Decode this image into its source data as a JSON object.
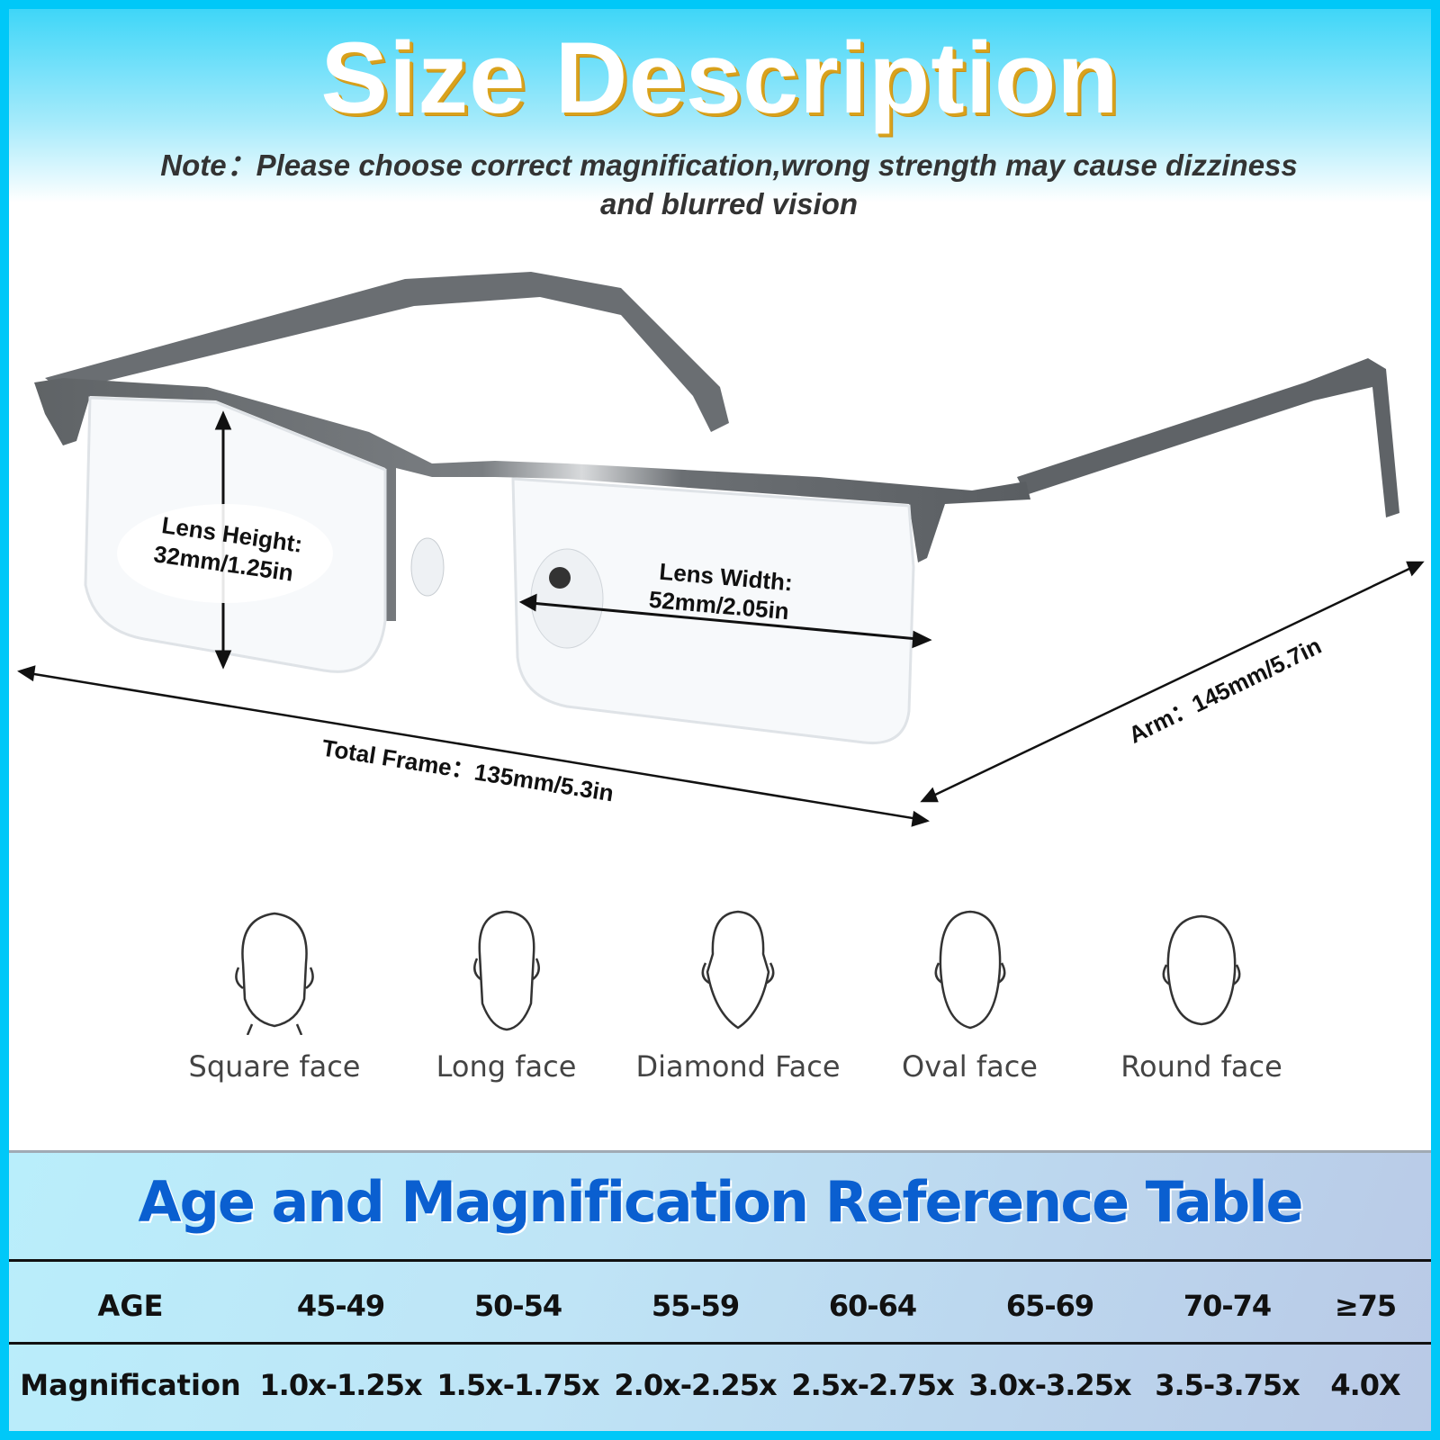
{
  "header": {
    "title": "Size Description",
    "note_line1": "Note：Please choose correct magnification,wrong strength may cause dizziness",
    "note_line2": "and blurred vision"
  },
  "dimensions": {
    "lens_height_label": "Lens Height:",
    "lens_height_value": "32mm/1.25in",
    "lens_width_label": "Lens Width:",
    "lens_width_value": "52mm/2.05in",
    "total_frame": "Total Frame：135mm/5.3in",
    "arm": "Arm：145mm/5.7in"
  },
  "faces": [
    {
      "label": "Square face"
    },
    {
      "label": "Long face"
    },
    {
      "label": "Diamond Face"
    },
    {
      "label": "Oval face"
    },
    {
      "label": "Round face"
    }
  ],
  "table": {
    "title": "Age and Magnification Reference Table",
    "age_header": "AGE",
    "magnification_header": "Magnification",
    "ages": [
      "45-49",
      "50-54",
      "55-59",
      "60-64",
      "65-69",
      "70-74",
      "≥75"
    ],
    "magnifications": [
      "1.0x-1.25x",
      "1.5x-1.75x",
      "2.0x-2.25x",
      "2.5x-2.75x",
      "3.0x-3.25x",
      "3.5-3.75x",
      "4.0X"
    ]
  },
  "colors": {
    "border": "#00c8f8",
    "title_shadow": "#d9a21b",
    "table_title": "#0a5fd0",
    "frame": "#6b6f73"
  }
}
